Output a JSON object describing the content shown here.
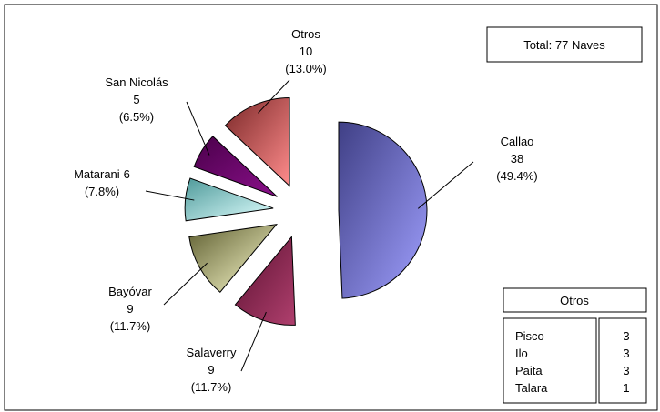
{
  "chart_data": {
    "type": "pie",
    "categories": [
      "Callao",
      "Salaverry",
      "Bayóvar",
      "Matarani",
      "San Nicolás",
      "Otros"
    ],
    "values": [
      38,
      9,
      9,
      6,
      5,
      10
    ],
    "percent_labels": [
      "(49.4%)",
      "(11.7%)",
      "(11.7%)",
      "(7.8%)",
      "(6.5%)",
      "(13.0%)"
    ],
    "colors": [
      [
        "#3f3f85",
        "#a0a0ff"
      ],
      [
        "#5a1030",
        "#b0406e"
      ],
      [
        "#5e5e30",
        "#ffffd0"
      ],
      [
        "#4f9a9a",
        "#e0ffff"
      ],
      [
        "#4a004a",
        "#8a108a"
      ],
      [
        "#7a2828",
        "#ff8c8c"
      ]
    ],
    "total": "Total: 77 Naves",
    "others_table": {
      "title": "Otros",
      "rows": [
        [
          "Pisco",
          3
        ],
        [
          "Ilo",
          3
        ],
        [
          "Paita",
          3
        ],
        [
          "Talara",
          1
        ]
      ]
    }
  }
}
